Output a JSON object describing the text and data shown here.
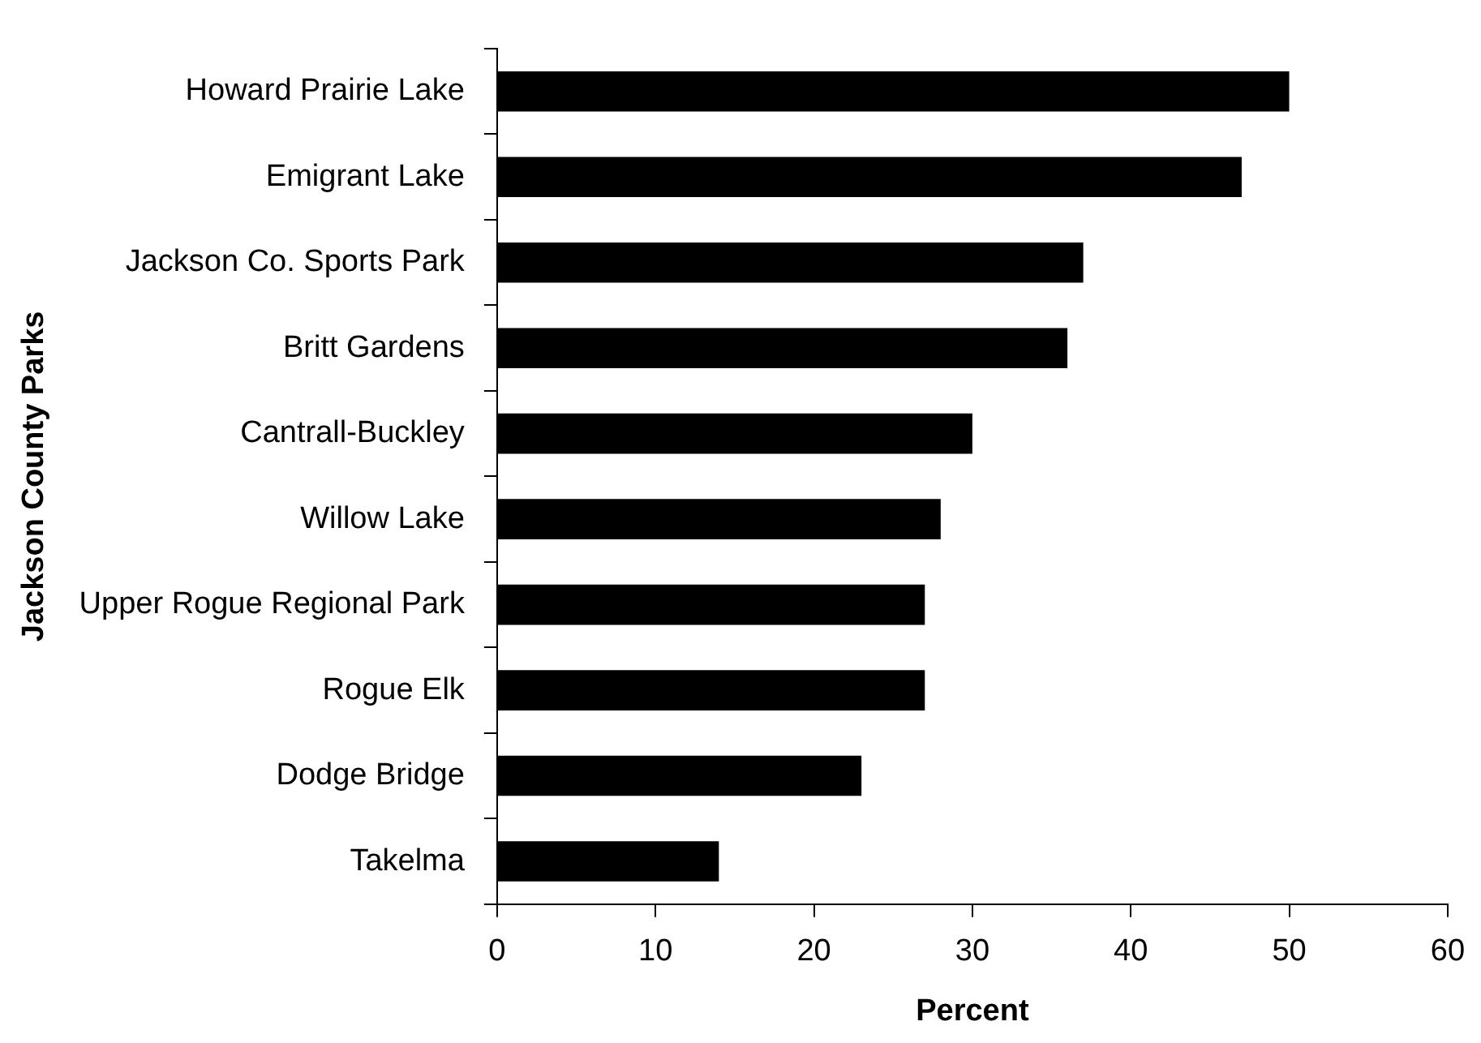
{
  "chart_data": {
    "type": "bar",
    "orientation": "horizontal",
    "categories": [
      "Howard Prairie Lake",
      "Emigrant Lake",
      "Jackson Co. Sports Park",
      "Britt Gardens",
      "Cantrall-Buckley",
      "Willow Lake",
      "Upper Rogue Regional Park",
      "Rogue Elk",
      "Dodge Bridge",
      "Takelma"
    ],
    "values": [
      50,
      47,
      37,
      36,
      30,
      28,
      27,
      27,
      23,
      14
    ],
    "color": "#000000",
    "xlim": [
      0,
      60
    ],
    "xticks": [
      0,
      10,
      20,
      30,
      40,
      50,
      60
    ],
    "xlabel": "Percent",
    "ylabel": "Jackson County Parks",
    "grid": false,
    "legend": false
  }
}
